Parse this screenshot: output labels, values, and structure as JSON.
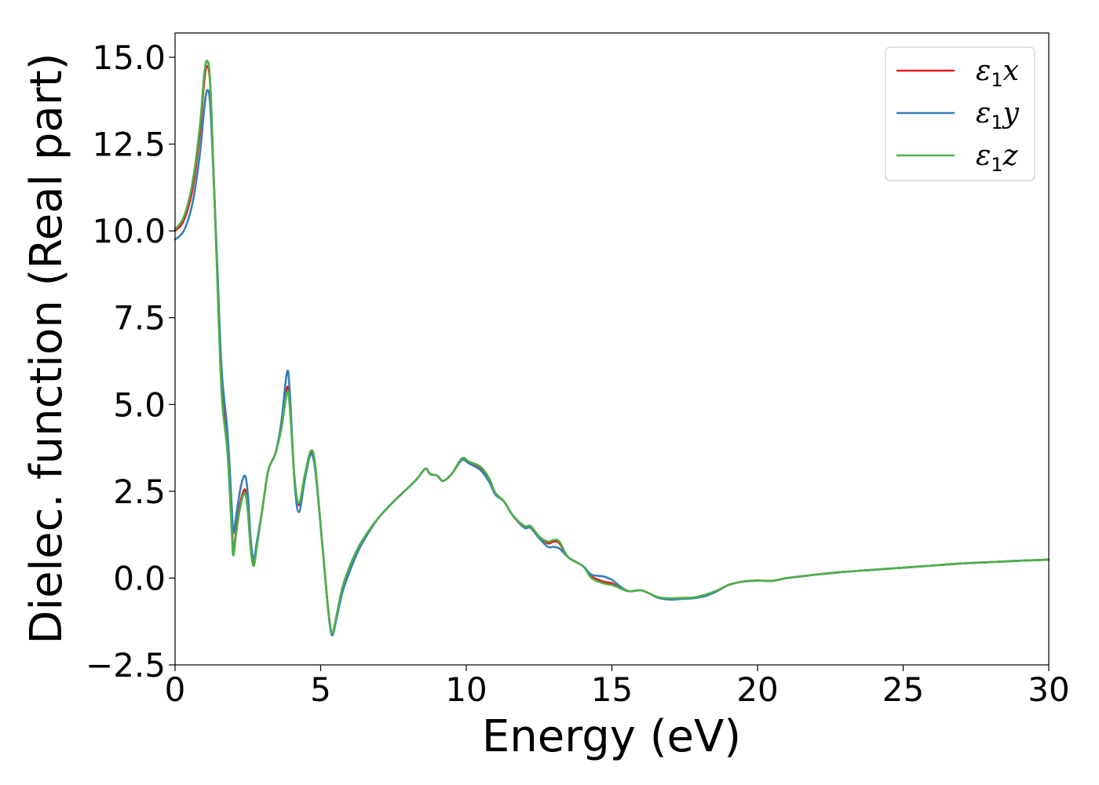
{
  "chart_data": {
    "type": "line",
    "xlabel": "Energy (eV)",
    "ylabel": "Dielec. function (Real part)",
    "xlim": [
      0,
      30
    ],
    "ylim": [
      -2.5,
      15.7
    ],
    "xticks": [
      0,
      5,
      10,
      15,
      20,
      25,
      30
    ],
    "xtick_labels": [
      "0",
      "5",
      "10",
      "15",
      "20",
      "25",
      "30"
    ],
    "yticks": [
      -2.5,
      0.0,
      2.5,
      5.0,
      7.5,
      10.0,
      12.5,
      15.0
    ],
    "ytick_labels": [
      "−2.5",
      "0.0",
      "2.5",
      "5.0",
      "7.5",
      "10.0",
      "12.5",
      "15.0"
    ],
    "grid": false,
    "legend_position": "top-right",
    "series": [
      {
        "name": "ε₁x",
        "legend": {
          "symbol": "ε",
          "sub": "1",
          "comp": "x"
        },
        "color": "#e41a1c",
        "points": [
          [
            0,
            10.0
          ],
          [
            0.3,
            10.3
          ],
          [
            0.6,
            11.2
          ],
          [
            0.85,
            12.8
          ],
          [
            1.0,
            14.3
          ],
          [
            1.1,
            14.75
          ],
          [
            1.2,
            14.3
          ],
          [
            1.3,
            12.2
          ],
          [
            1.45,
            8.8
          ],
          [
            1.6,
            5.5
          ],
          [
            1.8,
            3.8
          ],
          [
            1.95,
            1.5
          ],
          [
            2.0,
            0.75
          ],
          [
            2.1,
            1.4
          ],
          [
            2.25,
            2.2
          ],
          [
            2.4,
            2.55
          ],
          [
            2.5,
            2.0
          ],
          [
            2.6,
            0.9
          ],
          [
            2.7,
            0.4
          ],
          [
            2.8,
            0.9
          ],
          [
            3.0,
            2.0
          ],
          [
            3.2,
            3.1
          ],
          [
            3.45,
            3.6
          ],
          [
            3.65,
            4.4
          ],
          [
            3.85,
            5.5
          ],
          [
            3.95,
            4.9
          ],
          [
            4.1,
            2.9
          ],
          [
            4.25,
            2.1
          ],
          [
            4.45,
            2.9
          ],
          [
            4.65,
            3.6
          ],
          [
            4.8,
            3.3
          ],
          [
            5.0,
            1.5
          ],
          [
            5.2,
            -0.4
          ],
          [
            5.3,
            -1.2
          ],
          [
            5.4,
            -1.62
          ],
          [
            5.55,
            -1.1
          ],
          [
            5.75,
            -0.3
          ],
          [
            6.0,
            0.3
          ],
          [
            6.3,
            0.85
          ],
          [
            6.6,
            1.3
          ],
          [
            7.0,
            1.75
          ],
          [
            7.5,
            2.2
          ],
          [
            8.0,
            2.6
          ],
          [
            8.3,
            2.85
          ],
          [
            8.6,
            3.15
          ],
          [
            8.75,
            3.0
          ],
          [
            9.0,
            2.95
          ],
          [
            9.2,
            2.8
          ],
          [
            9.5,
            3.0
          ],
          [
            9.85,
            3.4
          ],
          [
            10.1,
            3.3
          ],
          [
            10.5,
            3.15
          ],
          [
            10.8,
            2.8
          ],
          [
            11.0,
            2.45
          ],
          [
            11.3,
            2.2
          ],
          [
            11.6,
            1.8
          ],
          [
            12.0,
            1.45
          ],
          [
            12.2,
            1.5
          ],
          [
            12.5,
            1.2
          ],
          [
            12.8,
            1.0
          ],
          [
            13.0,
            1.05
          ],
          [
            13.2,
            1.0
          ],
          [
            13.5,
            0.6
          ],
          [
            14.0,
            0.35
          ],
          [
            14.3,
            0.05
          ],
          [
            14.7,
            -0.1
          ],
          [
            15.0,
            -0.15
          ],
          [
            15.3,
            -0.3
          ],
          [
            15.6,
            -0.38
          ],
          [
            16.0,
            -0.35
          ],
          [
            16.3,
            -0.45
          ],
          [
            16.6,
            -0.57
          ],
          [
            17.0,
            -0.6
          ],
          [
            17.4,
            -0.58
          ],
          [
            17.8,
            -0.57
          ],
          [
            18.2,
            -0.5
          ],
          [
            18.6,
            -0.38
          ],
          [
            19.0,
            -0.2
          ],
          [
            19.5,
            -0.1
          ],
          [
            20.0,
            -0.07
          ],
          [
            20.5,
            -0.08
          ],
          [
            21.0,
            0.0
          ],
          [
            21.5,
            0.05
          ],
          [
            22.0,
            0.1
          ],
          [
            23.0,
            0.18
          ],
          [
            24.0,
            0.24
          ],
          [
            25.0,
            0.3
          ],
          [
            26.0,
            0.36
          ],
          [
            27.0,
            0.42
          ],
          [
            28.0,
            0.46
          ],
          [
            29.0,
            0.5
          ],
          [
            30.0,
            0.53
          ]
        ]
      },
      {
        "name": "ε₁y",
        "legend": {
          "symbol": "ε",
          "sub": "1",
          "comp": "y"
        },
        "color": "#377eb8",
        "points": [
          [
            0,
            9.75
          ],
          [
            0.3,
            10.0
          ],
          [
            0.6,
            10.8
          ],
          [
            0.85,
            12.2
          ],
          [
            1.0,
            13.5
          ],
          [
            1.1,
            14.05
          ],
          [
            1.2,
            13.7
          ],
          [
            1.3,
            12.0
          ],
          [
            1.45,
            9.0
          ],
          [
            1.6,
            6.0
          ],
          [
            1.8,
            4.2
          ],
          [
            1.95,
            2.0
          ],
          [
            2.0,
            1.3
          ],
          [
            2.1,
            1.8
          ],
          [
            2.25,
            2.6
          ],
          [
            2.4,
            2.95
          ],
          [
            2.5,
            2.4
          ],
          [
            2.6,
            1.1
          ],
          [
            2.7,
            0.55
          ],
          [
            2.8,
            1.0
          ],
          [
            3.0,
            2.0
          ],
          [
            3.2,
            3.1
          ],
          [
            3.45,
            3.6
          ],
          [
            3.65,
            4.5
          ],
          [
            3.85,
            5.95
          ],
          [
            3.95,
            5.2
          ],
          [
            4.1,
            2.8
          ],
          [
            4.25,
            1.9
          ],
          [
            4.45,
            2.8
          ],
          [
            4.65,
            3.55
          ],
          [
            4.8,
            3.2
          ],
          [
            5.0,
            1.5
          ],
          [
            5.2,
            -0.4
          ],
          [
            5.3,
            -1.25
          ],
          [
            5.4,
            -1.65
          ],
          [
            5.55,
            -1.15
          ],
          [
            5.75,
            -0.4
          ],
          [
            6.0,
            0.2
          ],
          [
            6.3,
            0.8
          ],
          [
            6.6,
            1.25
          ],
          [
            7.0,
            1.75
          ],
          [
            7.5,
            2.2
          ],
          [
            8.0,
            2.6
          ],
          [
            8.3,
            2.85
          ],
          [
            8.6,
            3.15
          ],
          [
            8.75,
            3.0
          ],
          [
            9.0,
            2.95
          ],
          [
            9.2,
            2.8
          ],
          [
            9.5,
            3.0
          ],
          [
            9.85,
            3.4
          ],
          [
            10.1,
            3.3
          ],
          [
            10.5,
            3.1
          ],
          [
            10.8,
            2.75
          ],
          [
            11.0,
            2.4
          ],
          [
            11.3,
            2.2
          ],
          [
            11.6,
            1.8
          ],
          [
            12.0,
            1.45
          ],
          [
            12.2,
            1.45
          ],
          [
            12.5,
            1.15
          ],
          [
            12.8,
            0.9
          ],
          [
            13.0,
            0.9
          ],
          [
            13.2,
            0.85
          ],
          [
            13.5,
            0.6
          ],
          [
            14.0,
            0.35
          ],
          [
            14.3,
            0.1
          ],
          [
            14.7,
            0.05
          ],
          [
            15.0,
            -0.05
          ],
          [
            15.3,
            -0.25
          ],
          [
            15.6,
            -0.38
          ],
          [
            16.0,
            -0.35
          ],
          [
            16.3,
            -0.45
          ],
          [
            16.6,
            -0.57
          ],
          [
            17.0,
            -0.62
          ],
          [
            17.4,
            -0.6
          ],
          [
            17.8,
            -0.58
          ],
          [
            18.2,
            -0.52
          ],
          [
            18.6,
            -0.38
          ],
          [
            19.0,
            -0.2
          ],
          [
            19.5,
            -0.1
          ],
          [
            20.0,
            -0.07
          ],
          [
            20.5,
            -0.08
          ],
          [
            21.0,
            0.0
          ],
          [
            21.5,
            0.05
          ],
          [
            22.0,
            0.1
          ],
          [
            23.0,
            0.18
          ],
          [
            24.0,
            0.24
          ],
          [
            25.0,
            0.3
          ],
          [
            26.0,
            0.36
          ],
          [
            27.0,
            0.42
          ],
          [
            28.0,
            0.46
          ],
          [
            29.0,
            0.5
          ],
          [
            30.0,
            0.53
          ]
        ]
      },
      {
        "name": "ε₁z",
        "legend": {
          "symbol": "ε",
          "sub": "1",
          "comp": "z"
        },
        "color": "#4daf4a",
        "points": [
          [
            0,
            10.05
          ],
          [
            0.3,
            10.4
          ],
          [
            0.6,
            11.4
          ],
          [
            0.85,
            13.0
          ],
          [
            1.0,
            14.5
          ],
          [
            1.1,
            14.9
          ],
          [
            1.2,
            14.4
          ],
          [
            1.3,
            12.2
          ],
          [
            1.45,
            8.6
          ],
          [
            1.6,
            5.3
          ],
          [
            1.8,
            3.6
          ],
          [
            1.95,
            1.3
          ],
          [
            2.0,
            0.65
          ],
          [
            2.1,
            1.3
          ],
          [
            2.25,
            2.1
          ],
          [
            2.4,
            2.45
          ],
          [
            2.5,
            1.9
          ],
          [
            2.6,
            0.8
          ],
          [
            2.7,
            0.35
          ],
          [
            2.8,
            0.85
          ],
          [
            3.0,
            2.0
          ],
          [
            3.2,
            3.1
          ],
          [
            3.45,
            3.6
          ],
          [
            3.65,
            4.3
          ],
          [
            3.85,
            5.35
          ],
          [
            3.95,
            4.8
          ],
          [
            4.1,
            2.9
          ],
          [
            4.25,
            2.15
          ],
          [
            4.45,
            2.95
          ],
          [
            4.65,
            3.65
          ],
          [
            4.8,
            3.35
          ],
          [
            5.0,
            1.5
          ],
          [
            5.2,
            -0.4
          ],
          [
            5.3,
            -1.2
          ],
          [
            5.4,
            -1.6
          ],
          [
            5.55,
            -1.05
          ],
          [
            5.75,
            -0.25
          ],
          [
            6.0,
            0.35
          ],
          [
            6.3,
            0.9
          ],
          [
            6.6,
            1.3
          ],
          [
            7.0,
            1.75
          ],
          [
            7.5,
            2.2
          ],
          [
            8.0,
            2.6
          ],
          [
            8.3,
            2.85
          ],
          [
            8.6,
            3.15
          ],
          [
            8.75,
            3.0
          ],
          [
            9.0,
            2.95
          ],
          [
            9.2,
            2.8
          ],
          [
            9.5,
            3.0
          ],
          [
            9.85,
            3.45
          ],
          [
            10.1,
            3.35
          ],
          [
            10.5,
            3.2
          ],
          [
            10.8,
            2.85
          ],
          [
            11.0,
            2.45
          ],
          [
            11.3,
            2.2
          ],
          [
            11.6,
            1.8
          ],
          [
            12.0,
            1.5
          ],
          [
            12.2,
            1.5
          ],
          [
            12.5,
            1.2
          ],
          [
            12.8,
            1.05
          ],
          [
            13.0,
            1.1
          ],
          [
            13.2,
            1.05
          ],
          [
            13.5,
            0.6
          ],
          [
            14.0,
            0.35
          ],
          [
            14.3,
            0.0
          ],
          [
            14.7,
            -0.15
          ],
          [
            15.0,
            -0.2
          ],
          [
            15.3,
            -0.3
          ],
          [
            15.6,
            -0.38
          ],
          [
            16.0,
            -0.35
          ],
          [
            16.3,
            -0.45
          ],
          [
            16.6,
            -0.55
          ],
          [
            17.0,
            -0.58
          ],
          [
            17.4,
            -0.57
          ],
          [
            17.8,
            -0.56
          ],
          [
            18.2,
            -0.48
          ],
          [
            18.6,
            -0.36
          ],
          [
            19.0,
            -0.2
          ],
          [
            19.5,
            -0.1
          ],
          [
            20.0,
            -0.07
          ],
          [
            20.5,
            -0.08
          ],
          [
            21.0,
            0.0
          ],
          [
            21.5,
            0.05
          ],
          [
            22.0,
            0.1
          ],
          [
            23.0,
            0.18
          ],
          [
            24.0,
            0.24
          ],
          [
            25.0,
            0.3
          ],
          [
            26.0,
            0.36
          ],
          [
            27.0,
            0.42
          ],
          [
            28.0,
            0.46
          ],
          [
            29.0,
            0.5
          ],
          [
            30.0,
            0.53
          ]
        ]
      }
    ]
  }
}
